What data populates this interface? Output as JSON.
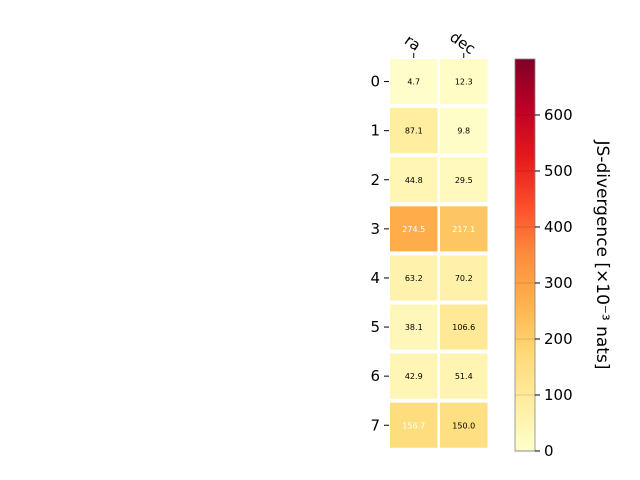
{
  "chart_data": {
    "type": "heatmap",
    "columns": [
      "ra",
      "dec"
    ],
    "rows": [
      "0",
      "1",
      "2",
      "3",
      "4",
      "5",
      "6",
      "7"
    ],
    "values": [
      [
        4.7,
        12.3
      ],
      [
        87.1,
        9.8
      ],
      [
        44.8,
        29.5
      ],
      [
        274.5,
        217.1
      ],
      [
        63.2,
        70.2
      ],
      [
        38.1,
        106.6
      ],
      [
        42.9,
        51.4
      ],
      [
        156.7,
        150.0
      ]
    ],
    "value_labels": [
      [
        "4.7",
        "12.3"
      ],
      [
        "87.1",
        "9.8"
      ],
      [
        "44.8",
        "29.5"
      ],
      [
        "274.5",
        "217.1"
      ],
      [
        "63.2",
        "70.2"
      ],
      [
        "38.1",
        "106.6"
      ],
      [
        "42.9",
        "51.4"
      ],
      [
        "156.7",
        "150.0"
      ]
    ],
    "colorbar": {
      "label": "JS-divergence [×10⁻³ nats]",
      "range": [
        0,
        700
      ],
      "ticks": [
        0,
        100,
        200,
        300,
        400,
        500,
        600
      ],
      "colormap": "YlOrRd"
    },
    "legend": "colorbar-right",
    "grid": false
  }
}
